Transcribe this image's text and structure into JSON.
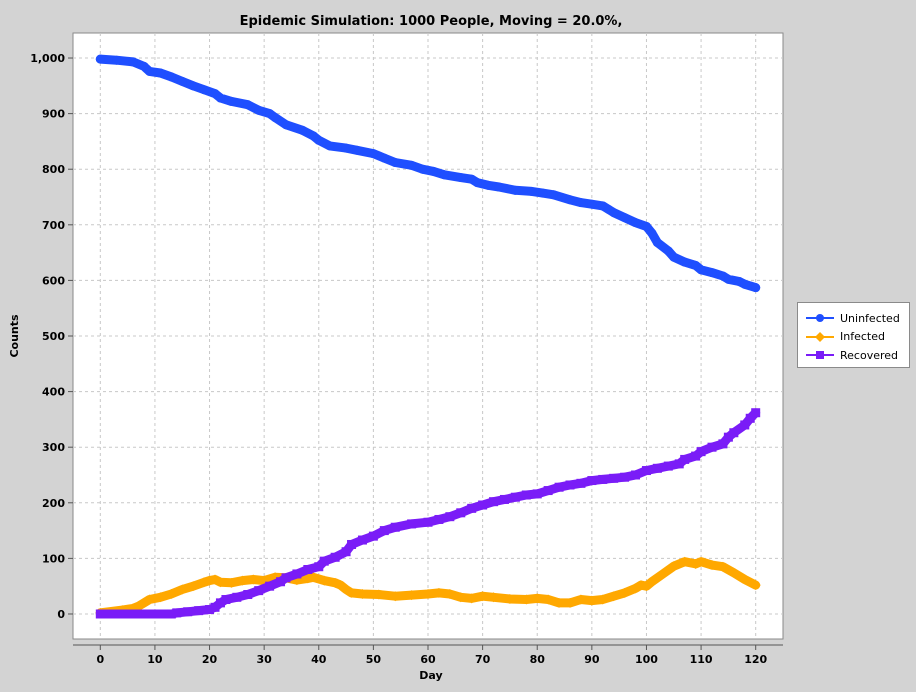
{
  "chart_data": {
    "type": "line",
    "title": "Epidemic Simulation: 1000 People, Moving = 20.0%,",
    "xlabel": "Day",
    "ylabel": "Counts",
    "xlim": [
      -5,
      125
    ],
    "ylim": [
      -45,
      1045
    ],
    "xticks": [
      0,
      10,
      20,
      30,
      40,
      50,
      60,
      70,
      80,
      90,
      100,
      110,
      120
    ],
    "yticks": [
      0,
      100,
      200,
      300,
      400,
      500,
      600,
      700,
      800,
      900,
      1000
    ],
    "ytick_labels": [
      "0",
      "100",
      "200",
      "300",
      "400",
      "500",
      "600",
      "700",
      "800",
      "900",
      "1,000"
    ],
    "grid": true,
    "legend_position": "right",
    "series": [
      {
        "name": "Uninfected",
        "color": "#1f4fff",
        "marker": "circle",
        "points": [
          [
            0,
            998
          ],
          [
            3,
            996
          ],
          [
            6,
            993
          ],
          [
            8,
            985
          ],
          [
            9,
            976
          ],
          [
            11,
            973
          ],
          [
            13,
            966
          ],
          [
            15,
            958
          ],
          [
            17,
            950
          ],
          [
            19,
            943
          ],
          [
            21,
            936
          ],
          [
            22,
            928
          ],
          [
            24,
            922
          ],
          [
            27,
            916
          ],
          [
            29,
            906
          ],
          [
            31,
            900
          ],
          [
            32,
            893
          ],
          [
            34,
            880
          ],
          [
            37,
            870
          ],
          [
            39,
            860
          ],
          [
            40,
            852
          ],
          [
            42,
            842
          ],
          [
            45,
            838
          ],
          [
            47,
            834
          ],
          [
            50,
            828
          ],
          [
            52,
            820
          ],
          [
            54,
            812
          ],
          [
            57,
            807
          ],
          [
            59,
            800
          ],
          [
            61,
            796
          ],
          [
            63,
            790
          ],
          [
            66,
            785
          ],
          [
            68,
            782
          ],
          [
            69,
            776
          ],
          [
            71,
            771
          ],
          [
            73,
            768
          ],
          [
            76,
            762
          ],
          [
            79,
            760
          ],
          [
            81,
            757
          ],
          [
            83,
            754
          ],
          [
            86,
            745
          ],
          [
            88,
            740
          ],
          [
            90,
            737
          ],
          [
            92,
            734
          ],
          [
            93,
            728
          ],
          [
            94,
            722
          ],
          [
            96,
            713
          ],
          [
            98,
            704
          ],
          [
            100,
            697
          ],
          [
            101,
            685
          ],
          [
            102,
            668
          ],
          [
            104,
            653
          ],
          [
            105,
            642
          ],
          [
            107,
            633
          ],
          [
            109,
            627
          ],
          [
            110,
            619
          ],
          [
            112,
            614
          ],
          [
            114,
            608
          ],
          [
            115,
            602
          ],
          [
            117,
            598
          ],
          [
            118,
            593
          ],
          [
            120,
            587
          ]
        ]
      },
      {
        "name": "Infected",
        "color": "#ffa800",
        "marker": "diamond",
        "points": [
          [
            0,
            2
          ],
          [
            4,
            7
          ],
          [
            6,
            10
          ],
          [
            7,
            14
          ],
          [
            8,
            20
          ],
          [
            9,
            26
          ],
          [
            11,
            30
          ],
          [
            13,
            36
          ],
          [
            15,
            44
          ],
          [
            17,
            50
          ],
          [
            19,
            57
          ],
          [
            20,
            60
          ],
          [
            21,
            62
          ],
          [
            22,
            57
          ],
          [
            24,
            56
          ],
          [
            26,
            60
          ],
          [
            28,
            62
          ],
          [
            30,
            60
          ],
          [
            32,
            66
          ],
          [
            34,
            65
          ],
          [
            36,
            61
          ],
          [
            38,
            64
          ],
          [
            39,
            66
          ],
          [
            41,
            60
          ],
          [
            43,
            56
          ],
          [
            44,
            52
          ],
          [
            45,
            44
          ],
          [
            46,
            38
          ],
          [
            48,
            36
          ],
          [
            51,
            35
          ],
          [
            54,
            32
          ],
          [
            57,
            34
          ],
          [
            60,
            36
          ],
          [
            62,
            38
          ],
          [
            64,
            36
          ],
          [
            66,
            30
          ],
          [
            68,
            28
          ],
          [
            70,
            32
          ],
          [
            72,
            30
          ],
          [
            75,
            27
          ],
          [
            78,
            26
          ],
          [
            80,
            28
          ],
          [
            82,
            26
          ],
          [
            84,
            20
          ],
          [
            86,
            20
          ],
          [
            88,
            26
          ],
          [
            90,
            24
          ],
          [
            92,
            26
          ],
          [
            94,
            32
          ],
          [
            96,
            38
          ],
          [
            98,
            46
          ],
          [
            99,
            52
          ],
          [
            100,
            50
          ],
          [
            101,
            58
          ],
          [
            103,
            72
          ],
          [
            105,
            86
          ],
          [
            107,
            94
          ],
          [
            109,
            90
          ],
          [
            110,
            94
          ],
          [
            112,
            88
          ],
          [
            114,
            85
          ],
          [
            116,
            74
          ],
          [
            118,
            62
          ],
          [
            120,
            52
          ]
        ]
      },
      {
        "name": "Recovered",
        "color": "#7a1cf7",
        "marker": "square",
        "points": [
          [
            0,
            0
          ],
          [
            13,
            0
          ],
          [
            14,
            2
          ],
          [
            16,
            4
          ],
          [
            18,
            6
          ],
          [
            20,
            8
          ],
          [
            21,
            12
          ],
          [
            22,
            20
          ],
          [
            23,
            26
          ],
          [
            25,
            30
          ],
          [
            27,
            35
          ],
          [
            29,
            42
          ],
          [
            31,
            50
          ],
          [
            33,
            58
          ],
          [
            34,
            65
          ],
          [
            36,
            72
          ],
          [
            38,
            80
          ],
          [
            40,
            85
          ],
          [
            41,
            95
          ],
          [
            43,
            102
          ],
          [
            45,
            112
          ],
          [
            46,
            125
          ],
          [
            48,
            133
          ],
          [
            50,
            140
          ],
          [
            52,
            150
          ],
          [
            54,
            156
          ],
          [
            57,
            162
          ],
          [
            60,
            165
          ],
          [
            62,
            170
          ],
          [
            64,
            175
          ],
          [
            66,
            182
          ],
          [
            68,
            190
          ],
          [
            70,
            196
          ],
          [
            72,
            202
          ],
          [
            74,
            206
          ],
          [
            76,
            210
          ],
          [
            78,
            214
          ],
          [
            80,
            216
          ],
          [
            82,
            222
          ],
          [
            84,
            228
          ],
          [
            86,
            232
          ],
          [
            88,
            235
          ],
          [
            90,
            240
          ],
          [
            92,
            242
          ],
          [
            94,
            244
          ],
          [
            96,
            246
          ],
          [
            98,
            250
          ],
          [
            100,
            258
          ],
          [
            102,
            262
          ],
          [
            104,
            266
          ],
          [
            106,
            270
          ],
          [
            107,
            278
          ],
          [
            109,
            284
          ],
          [
            110,
            292
          ],
          [
            112,
            300
          ],
          [
            114,
            306
          ],
          [
            115,
            318
          ],
          [
            116,
            326
          ],
          [
            118,
            340
          ],
          [
            119,
            352
          ],
          [
            120,
            362
          ]
        ]
      }
    ]
  }
}
